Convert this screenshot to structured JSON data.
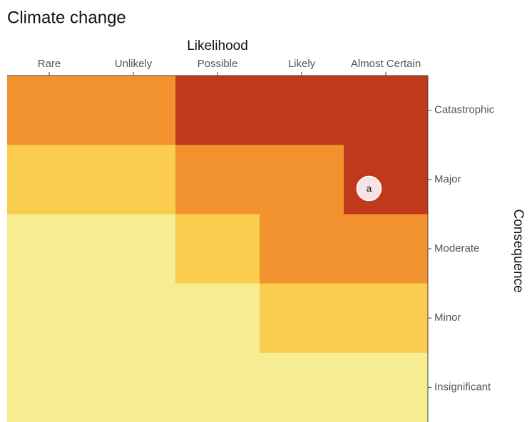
{
  "chart_data": {
    "type": "heatmap",
    "title": "Climate change",
    "x_label": "Likelihood",
    "y_label": "Consequence",
    "x_categories": [
      "Rare",
      "Unlikely",
      "Possible",
      "Likely",
      "Almost Certain"
    ],
    "y_categories": [
      "Catastrophic",
      "Major",
      "Moderate",
      "Minor",
      "Insignificant"
    ],
    "colors": [
      [
        "#f2922f",
        "#f2922f",
        "#c0391b",
        "#c0391b",
        "#c0391b"
      ],
      [
        "#fbcd4e",
        "#fbcd4e",
        "#f2922f",
        "#f2922f",
        "#c0391b"
      ],
      [
        "#f6ec92",
        "#f6ec92",
        "#fbcd4e",
        "#f2922f",
        "#f2922f"
      ],
      [
        "#f6ec92",
        "#f6ec92",
        "#f6ec92",
        "#fbcd4e",
        "#fbcd4e"
      ],
      [
        "#f6ec92",
        "#f6ec92",
        "#f6ec92",
        "#f6ec92",
        "#f6ec92"
      ]
    ],
    "annotations": [
      {
        "text": "a",
        "x": "Almost Certain",
        "y": "Major"
      }
    ]
  }
}
